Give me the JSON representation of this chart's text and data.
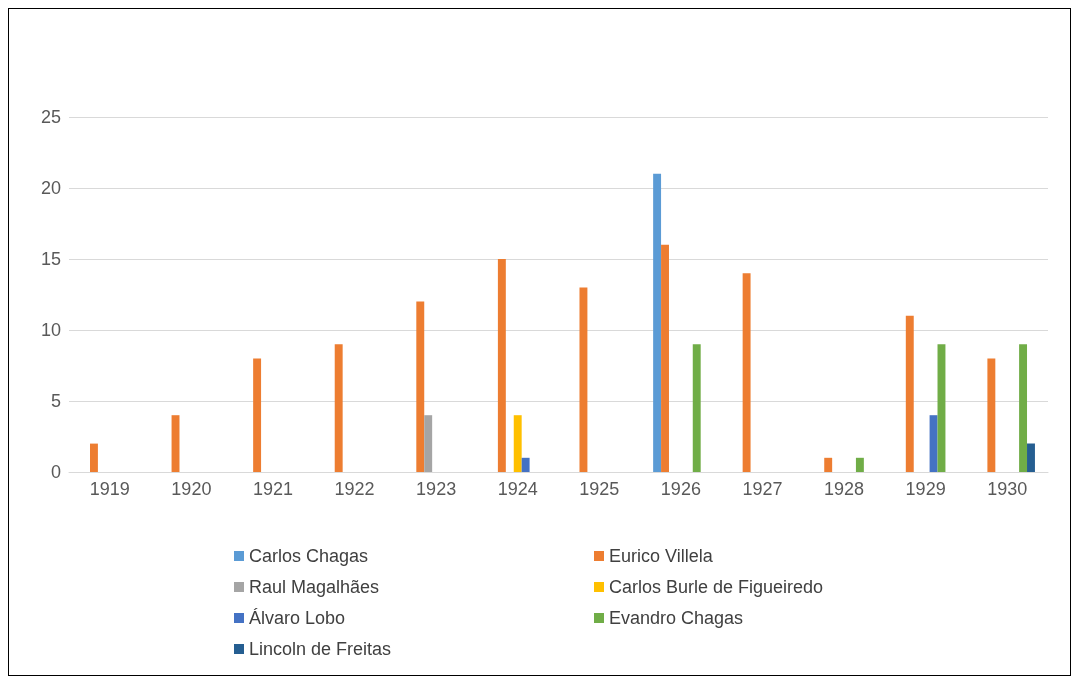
{
  "chart_data": {
    "type": "bar",
    "categories": [
      "1919",
      "1920",
      "1921",
      "1922",
      "1923",
      "1924",
      "1925",
      "1926",
      "1927",
      "1928",
      "1929",
      "1930"
    ],
    "series": [
      {
        "name": "Carlos Chagas",
        "color": "#5b9bd5",
        "values": [
          null,
          null,
          null,
          null,
          null,
          null,
          null,
          21,
          null,
          null,
          null,
          null
        ]
      },
      {
        "name": "Eurico Villela",
        "color": "#ed7d31",
        "values": [
          2,
          4,
          8,
          9,
          12,
          15,
          13,
          16,
          14,
          1,
          11,
          8
        ]
      },
      {
        "name": "Raul Magalhães",
        "color": "#a5a5a5",
        "values": [
          null,
          null,
          null,
          null,
          4,
          null,
          null,
          null,
          null,
          null,
          null,
          null
        ]
      },
      {
        "name": "Carlos Burle de Figueiredo",
        "color": "#ffc000",
        "values": [
          null,
          null,
          null,
          null,
          null,
          4,
          null,
          null,
          null,
          null,
          null,
          null
        ]
      },
      {
        "name": "Álvaro Lobo",
        "color": "#4472c4",
        "values": [
          null,
          null,
          null,
          null,
          null,
          1,
          null,
          null,
          null,
          null,
          4,
          null
        ]
      },
      {
        "name": "Evandro Chagas",
        "color": "#70ad47",
        "values": [
          null,
          null,
          null,
          null,
          null,
          null,
          null,
          9,
          null,
          1,
          9,
          9
        ]
      },
      {
        "name": "Lincoln de Freitas",
        "color": "#255e91",
        "values": [
          null,
          null,
          null,
          null,
          null,
          null,
          null,
          null,
          null,
          null,
          null,
          2
        ]
      }
    ],
    "ylim": [
      0,
      25
    ],
    "yticks": [
      0,
      5,
      10,
      15,
      20,
      25
    ],
    "grid": "y",
    "legend": "bottom"
  }
}
